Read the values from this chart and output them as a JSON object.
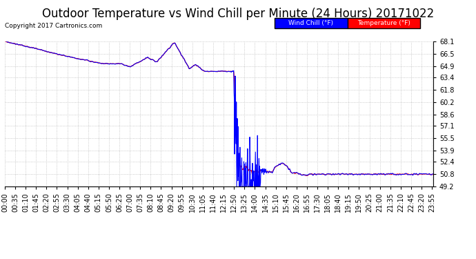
{
  "title": "Outdoor Temperature vs Wind Chill per Minute (24 Hours) 20171022",
  "copyright": "Copyright 2017 Cartronics.com",
  "legend_windchill": "Wind Chill (°F)",
  "legend_temperature": "Temperature (°F)",
  "ylim_min": 49.2,
  "ylim_max": 68.1,
  "yticks": [
    49.2,
    50.8,
    52.4,
    53.9,
    55.5,
    57.1,
    58.6,
    60.2,
    61.8,
    63.4,
    64.9,
    66.5,
    68.1
  ],
  "bg_color": "#ffffff",
  "grid_color": "#bbbbbb",
  "temp_color": "#ff0000",
  "wind_color": "#0000ff",
  "title_fontsize": 12,
  "tick_fontsize": 7,
  "xtick_interval": 35,
  "legend_wind_bg": "#0000ff",
  "legend_temp_bg": "#ff0000"
}
